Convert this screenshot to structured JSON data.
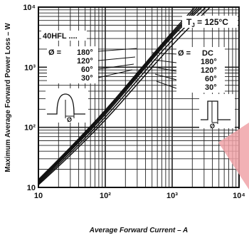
{
  "chart_data": {
    "type": "line",
    "xlabel": "Average Forward Current – A",
    "ylabel": "Maximum Average Forward Power Loss – W",
    "x_scale": "log",
    "y_scale": "log",
    "xlim": [
      10,
      10000
    ],
    "ylim": [
      10,
      10000
    ],
    "x_ticks": [
      {
        "value": 10,
        "label": "10"
      },
      {
        "value": 100,
        "label": "10²"
      },
      {
        "value": 1000,
        "label": "10³"
      },
      {
        "value": 10000,
        "label": "10⁴"
      }
    ],
    "y_ticks": [
      {
        "value": 10,
        "label": "10"
      },
      {
        "value": 100,
        "label": "10²"
      },
      {
        "value": 1000,
        "label": "10³"
      },
      {
        "value": 10000,
        "label": "10⁴"
      }
    ],
    "grid": true,
    "annotations": {
      "tj": "T",
      "tj_sub": "J",
      "tj_value": " = 125°C",
      "part": "40HFL ....",
      "phi_left": "Ø =",
      "phi_right": "Ø =",
      "left_angles": [
        "180°",
        "120°",
        "60°",
        "30°"
      ],
      "right_angles": [
        "DC",
        "180°",
        "120°",
        "60°",
        "30°"
      ],
      "left_wave_label": "Ø",
      "right_wave_label": "Ø"
    },
    "series": [
      {
        "points": [
          [
            10,
            13.5
          ],
          [
            30,
            46
          ],
          [
            100,
            190
          ],
          [
            300,
            800
          ],
          [
            1000,
            3900
          ],
          [
            2200,
            10000
          ]
        ]
      },
      {
        "points": [
          [
            10,
            13.0
          ],
          [
            30,
            44
          ],
          [
            100,
            180
          ],
          [
            300,
            760
          ],
          [
            1000,
            3700
          ],
          [
            2400,
            10000
          ]
        ]
      },
      {
        "points": [
          [
            10,
            12.5
          ],
          [
            30,
            42
          ],
          [
            100,
            170
          ],
          [
            300,
            720
          ],
          [
            1000,
            3500
          ],
          [
            2600,
            10000
          ]
        ]
      },
      {
        "points": [
          [
            10,
            12.0
          ],
          [
            30,
            40
          ],
          [
            100,
            160
          ],
          [
            300,
            680
          ],
          [
            1000,
            3300
          ],
          [
            2800,
            10000
          ]
        ]
      },
      {
        "points": [
          [
            10,
            11.5
          ],
          [
            30,
            37
          ],
          [
            100,
            145
          ],
          [
            300,
            600
          ],
          [
            1000,
            2900
          ],
          [
            3200,
            10000
          ]
        ]
      },
      {
        "points": [
          [
            10,
            11.0
          ],
          [
            30,
            34
          ],
          [
            100,
            130
          ],
          [
            300,
            520
          ],
          [
            1000,
            2400
          ],
          [
            3700,
            10000
          ]
        ]
      }
    ]
  }
}
